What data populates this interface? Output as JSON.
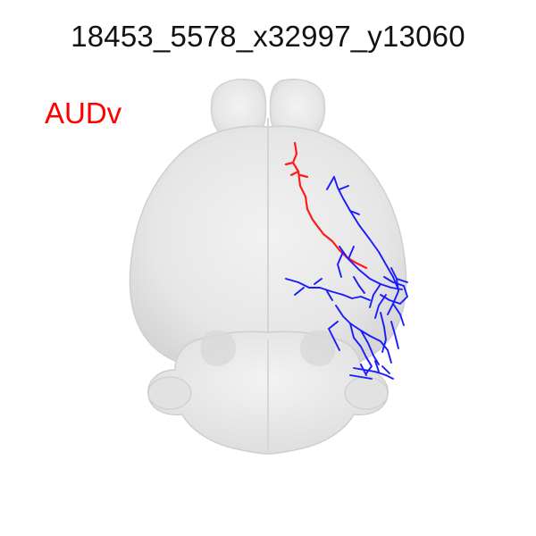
{
  "title": "18453_5578_x32997_y13060",
  "region_label": "AUDv",
  "colors": {
    "region_label": "#ff0000",
    "axon_red": "#ff1a1a",
    "axon_blue": "#1a1aff",
    "brain_fill": "#e9e9e9",
    "brain_edge": "#cfcfcf"
  },
  "icons": {
    "brain": "mouse-brain-dorsal-view",
    "neuron": "neuron-reconstruction"
  }
}
